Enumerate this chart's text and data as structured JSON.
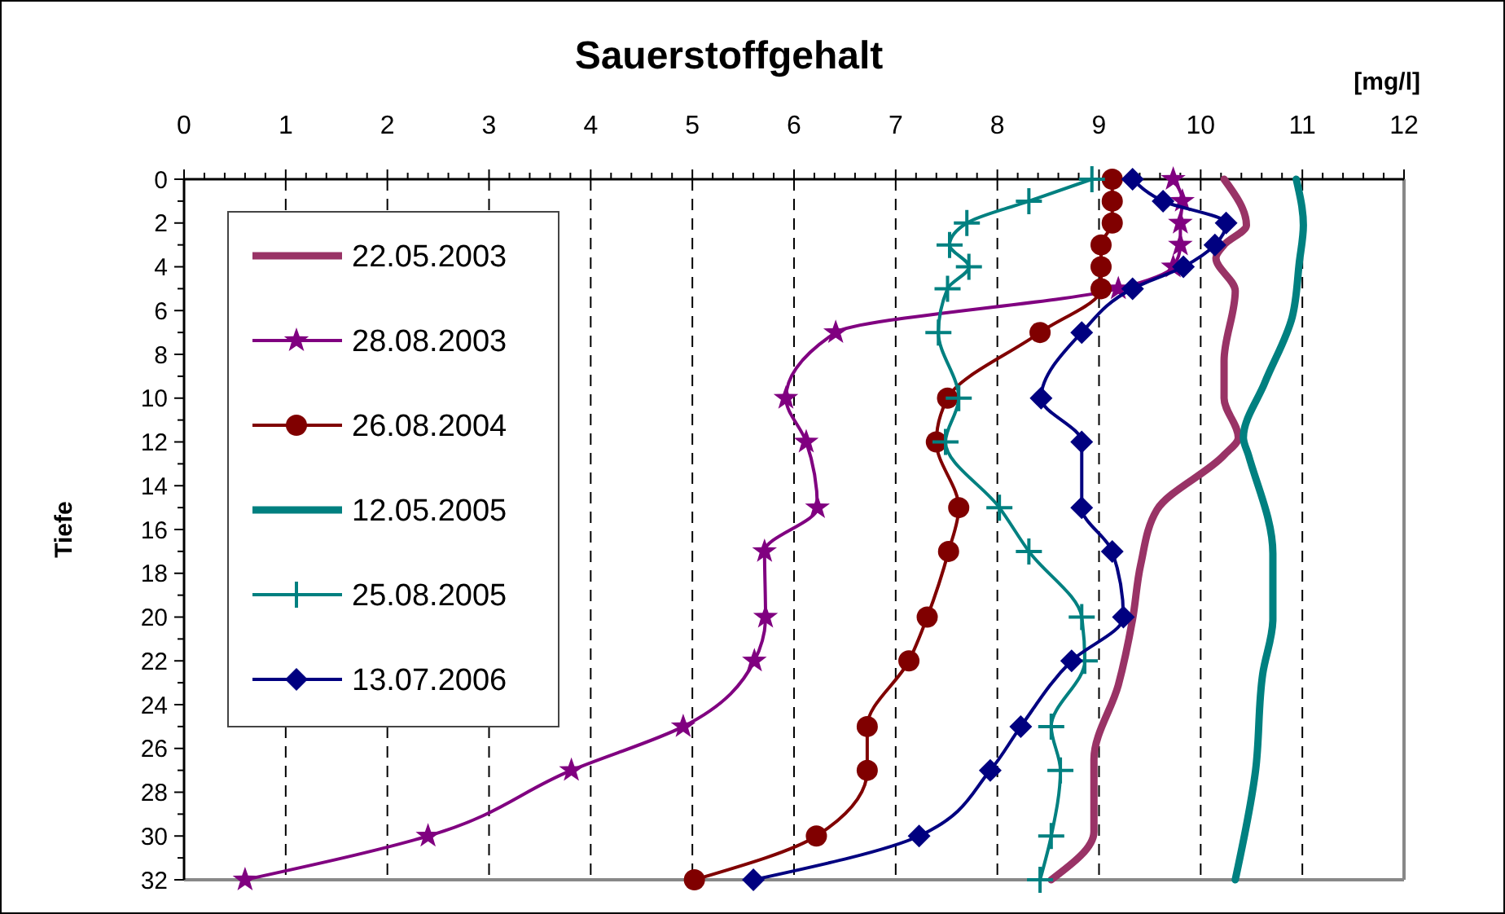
{
  "chart_data": {
    "type": "line",
    "title": "Sauerstoffgehalt",
    "xlabel": "[mg/l]",
    "ylabel": "Tiefe",
    "xlim": [
      0,
      12
    ],
    "xticks": [
      0,
      {
        "value": 0.2,
        "label": null
      },
      {
        "value": 0.4,
        "label": null
      },
      {
        "value": 0.6,
        "label": null
      },
      {
        "value": 0.8,
        "label": null
      },
      1,
      {
        "value": 1.2,
        "label": null
      },
      {
        "value": 1.4,
        "label": null
      },
      {
        "value": 1.6,
        "label": null
      },
      {
        "value": 1.8,
        "label": null
      },
      2,
      {
        "value": 2.2,
        "label": null
      },
      {
        "value": 2.4,
        "label": null
      },
      {
        "value": 2.6,
        "label": null
      },
      {
        "value": 2.8,
        "label": null
      },
      3,
      {
        "value": 3.2,
        "label": null
      },
      {
        "value": 3.4,
        "label": null
      },
      {
        "value": 3.6,
        "label": null
      },
      {
        "value": 3.8,
        "label": null
      },
      4,
      {
        "value": 4.2,
        "label": null
      },
      {
        "value": 4.4,
        "label": null
      },
      {
        "value": 4.6,
        "label": null
      },
      {
        "value": 4.8,
        "label": null
      },
      5,
      {
        "value": 5.2,
        "label": null
      },
      {
        "value": 5.4,
        "label": null
      },
      {
        "value": 5.6,
        "label": null
      },
      {
        "value": 5.8,
        "label": null
      },
      6,
      {
        "value": 6.2,
        "label": null
      },
      {
        "value": 6.4,
        "label": null
      },
      {
        "value": 6.6,
        "label": null
      },
      {
        "value": 6.8,
        "label": null
      },
      7,
      {
        "value": 7.2,
        "label": null
      },
      {
        "value": 7.4,
        "label": null
      },
      {
        "value": 7.6,
        "label": null
      },
      {
        "value": 7.8,
        "label": null
      },
      8,
      {
        "value": 8.2,
        "label": null
      },
      {
        "value": 8.4,
        "label": null
      },
      {
        "value": 8.6,
        "label": null
      },
      {
        "value": 8.8,
        "label": null
      },
      9,
      {
        "value": 9.2,
        "label": null
      },
      {
        "value": 9.4,
        "label": null
      },
      {
        "value": 9.6,
        "label": null
      },
      {
        "value": 9.8,
        "label": null
      },
      10,
      {
        "value": 10.2,
        "label": null
      },
      {
        "value": 10.4,
        "label": null
      },
      {
        "value": 10.6,
        "label": null
      },
      {
        "value": 10.8,
        "label": null
      },
      11,
      {
        "value": 11.2,
        "label": null
      },
      {
        "value": 11.4,
        "label": null
      },
      {
        "value": 11.6,
        "label": null
      },
      {
        "value": 11.8,
        "label": null
      },
      12
    ],
    "ylim": [
      32,
      0
    ],
    "yticks": [
      0,
      {
        "value": 1,
        "label": null
      },
      2,
      {
        "value": 3,
        "label": null
      },
      4,
      {
        "value": 5,
        "label": null
      },
      6,
      {
        "value": 7,
        "label": null
      },
      8,
      {
        "value": 9,
        "label": null
      },
      10,
      {
        "value": 11,
        "label": null
      },
      12,
      {
        "value": 13,
        "label": null
      },
      14,
      {
        "value": 15,
        "label": null
      },
      16,
      {
        "value": 17,
        "label": null
      },
      18,
      {
        "value": 19,
        "label": null
      },
      20,
      {
        "value": 21,
        "label": null
      },
      22,
      {
        "value": 23,
        "label": null
      },
      24,
      {
        "value": 25,
        "label": null
      },
      26,
      {
        "value": 27,
        "label": null
      },
      28,
      {
        "value": 29,
        "label": null
      },
      30,
      {
        "value": 31,
        "label": null
      },
      32
    ],
    "grid": "x",
    "legend": "top left",
    "series": [
      {
        "name": "22.05.2003",
        "color": "#993366",
        "marker": "none",
        "x": [
          10.23,
          10.45,
          10.23,
          10.15,
          10.34,
          10.23,
          10.23,
          10.37,
          10.23,
          9.57,
          9.41,
          9.33,
          9.19,
          8.95,
          8.95,
          8.53
        ],
        "values": [
          0,
          2.1,
          3,
          3.6,
          5.1,
          8.3,
          10,
          11.8,
          12.6,
          15.1,
          17.6,
          20.1,
          23.1,
          26.5,
          29.8,
          32
        ]
      },
      {
        "name": "28.08.2003",
        "color": "#800080",
        "marker": "star",
        "x": [
          9.73,
          9.82,
          9.8,
          9.8,
          9.73,
          9.19,
          6.41,
          5.92,
          6.12,
          6.23,
          5.71,
          5.72,
          5.61,
          4.91,
          3.81,
          2.4,
          0.6
        ],
        "values": [
          0,
          1,
          2,
          3,
          4,
          5,
          7,
          10,
          12,
          15,
          17,
          20,
          22,
          25,
          27,
          30,
          32
        ]
      },
      {
        "name": "26.08.2004",
        "color": "#800000",
        "marker": "circle",
        "x": [
          9.13,
          9.13,
          9.13,
          9.02,
          9.02,
          9.02,
          8.42,
          7.51,
          7.4,
          7.62,
          7.52,
          7.31,
          7.13,
          6.72,
          6.72,
          6.22,
          5.02
        ],
        "values": [
          0,
          1,
          2,
          3,
          4,
          5,
          7,
          10,
          12,
          15,
          17,
          20,
          22,
          25,
          27,
          30,
          32
        ]
      },
      {
        "name": "12.05.2005",
        "color": "#008080",
        "marker": "none",
        "x": [
          10.94,
          11.01,
          10.97,
          10.9,
          10.63,
          10.42,
          10.47,
          10.71,
          10.71,
          10.61,
          10.54,
          10.34
        ],
        "values": [
          0,
          2.1,
          3.8,
          6.3,
          9.3,
          11.8,
          12.6,
          17.1,
          20.1,
          22.6,
          27,
          32
        ]
      },
      {
        "name": "25.08.2005",
        "color": "#008080",
        "marker": "cross",
        "x": [
          8.93,
          8.31,
          7.7,
          7.53,
          7.72,
          7.51,
          7.42,
          7.62,
          7.49,
          8.02,
          8.31,
          8.83,
          8.86,
          8.53,
          8.62,
          8.53,
          8.42
        ],
        "values": [
          0,
          1,
          2,
          3,
          4,
          5,
          7,
          10,
          12,
          15,
          17,
          20,
          22,
          25,
          27,
          30,
          32
        ]
      },
      {
        "name": "13.07.2006",
        "color": "#000080",
        "marker": "diamond",
        "x": [
          9.33,
          9.63,
          10.25,
          10.14,
          9.83,
          9.33,
          8.83,
          8.43,
          8.83,
          8.83,
          9.13,
          9.24,
          8.73,
          8.23,
          7.93,
          7.23,
          5.6
        ],
        "values": [
          0,
          1,
          2,
          3,
          4,
          5,
          7,
          10,
          12,
          15,
          17,
          20,
          22,
          25,
          27,
          30,
          32
        ]
      }
    ]
  }
}
